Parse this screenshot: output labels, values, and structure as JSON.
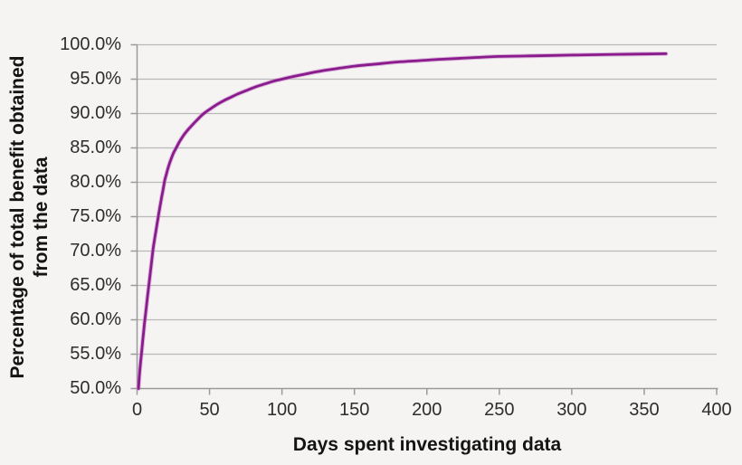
{
  "figure": {
    "background": "#f5f4f2"
  },
  "chart_data": {
    "type": "line",
    "title": "",
    "xlabel": "Days spent investigating data",
    "ylabel": "Percentage of total benefit obtained from the data",
    "ylabel_line1": "Percentage of total benefit obtained",
    "ylabel_line2": "from the data",
    "xlim": [
      0,
      400
    ],
    "ylim": [
      50,
      100
    ],
    "x_ticks": [
      0,
      50,
      100,
      150,
      200,
      250,
      300,
      350,
      400
    ],
    "x_tick_labels": [
      "0",
      "50",
      "100",
      "150",
      "200",
      "250",
      "300",
      "350",
      "400"
    ],
    "y_ticks": [
      50,
      55,
      60,
      65,
      70,
      75,
      80,
      85,
      90,
      95,
      100
    ],
    "y_tick_labels": [
      "50.0%",
      "55.0%",
      "60.0%",
      "65.0%",
      "70.0%",
      "75.0%",
      "80.0%",
      "85.0%",
      "90.0%",
      "95.0%",
      "100.0%"
    ],
    "grid": "horizontal",
    "legend": "none",
    "series": [
      {
        "name": "Percentage of total benefit obtained from the data",
        "color": "#8a1b8d",
        "points": [
          [
            1,
            50.0
          ],
          [
            1.5,
            51.6
          ],
          [
            2,
            52.9
          ],
          [
            2.5,
            54.0
          ],
          [
            3,
            55.0
          ],
          [
            3.5,
            56.1
          ],
          [
            4,
            57.2
          ],
          [
            4.5,
            58.2
          ],
          [
            5,
            59.3
          ],
          [
            6,
            61.1
          ],
          [
            7,
            63.0
          ],
          [
            8,
            64.8
          ],
          [
            9,
            66.6
          ],
          [
            10,
            68.4
          ],
          [
            11,
            70.2
          ],
          [
            12,
            71.6
          ],
          [
            13,
            72.9
          ],
          [
            14,
            74.2
          ],
          [
            15,
            75.5
          ],
          [
            16,
            76.7
          ],
          [
            17,
            77.9
          ],
          [
            18,
            79.0
          ],
          [
            19,
            80.2
          ],
          [
            20,
            81.0
          ],
          [
            21,
            81.8
          ],
          [
            22,
            82.5
          ],
          [
            23,
            83.1
          ],
          [
            25,
            84.2
          ],
          [
            27,
            85.0
          ],
          [
            29,
            85.8
          ],
          [
            32,
            86.8
          ],
          [
            35,
            87.6
          ],
          [
            38,
            88.3
          ],
          [
            42,
            89.2
          ],
          [
            46,
            90.0
          ],
          [
            50,
            90.6
          ],
          [
            55,
            91.3
          ],
          [
            60,
            91.9
          ],
          [
            65,
            92.4
          ],
          [
            70,
            92.9
          ],
          [
            76,
            93.4
          ],
          [
            82,
            93.9
          ],
          [
            88,
            94.3
          ],
          [
            94,
            94.7
          ],
          [
            100,
            95.0
          ],
          [
            108,
            95.4
          ],
          [
            115,
            95.7
          ],
          [
            122,
            96.0
          ],
          [
            130,
            96.3
          ],
          [
            140,
            96.6
          ],
          [
            150,
            96.9
          ],
          [
            165,
            97.2
          ],
          [
            180,
            97.5
          ],
          [
            195,
            97.7
          ],
          [
            210,
            97.9
          ],
          [
            230,
            98.1
          ],
          [
            250,
            98.3
          ],
          [
            275,
            98.4
          ],
          [
            300,
            98.5
          ],
          [
            330,
            98.6
          ],
          [
            365,
            98.7
          ]
        ]
      }
    ]
  },
  "style": {
    "grid_color": "#b9b9b9",
    "axis_color": "#9a9a9a",
    "tick_label_color": "#2d2d2d",
    "title_color": "#141414",
    "line_color": "#8a1b8d",
    "line_halo_color": "#c583c6"
  }
}
